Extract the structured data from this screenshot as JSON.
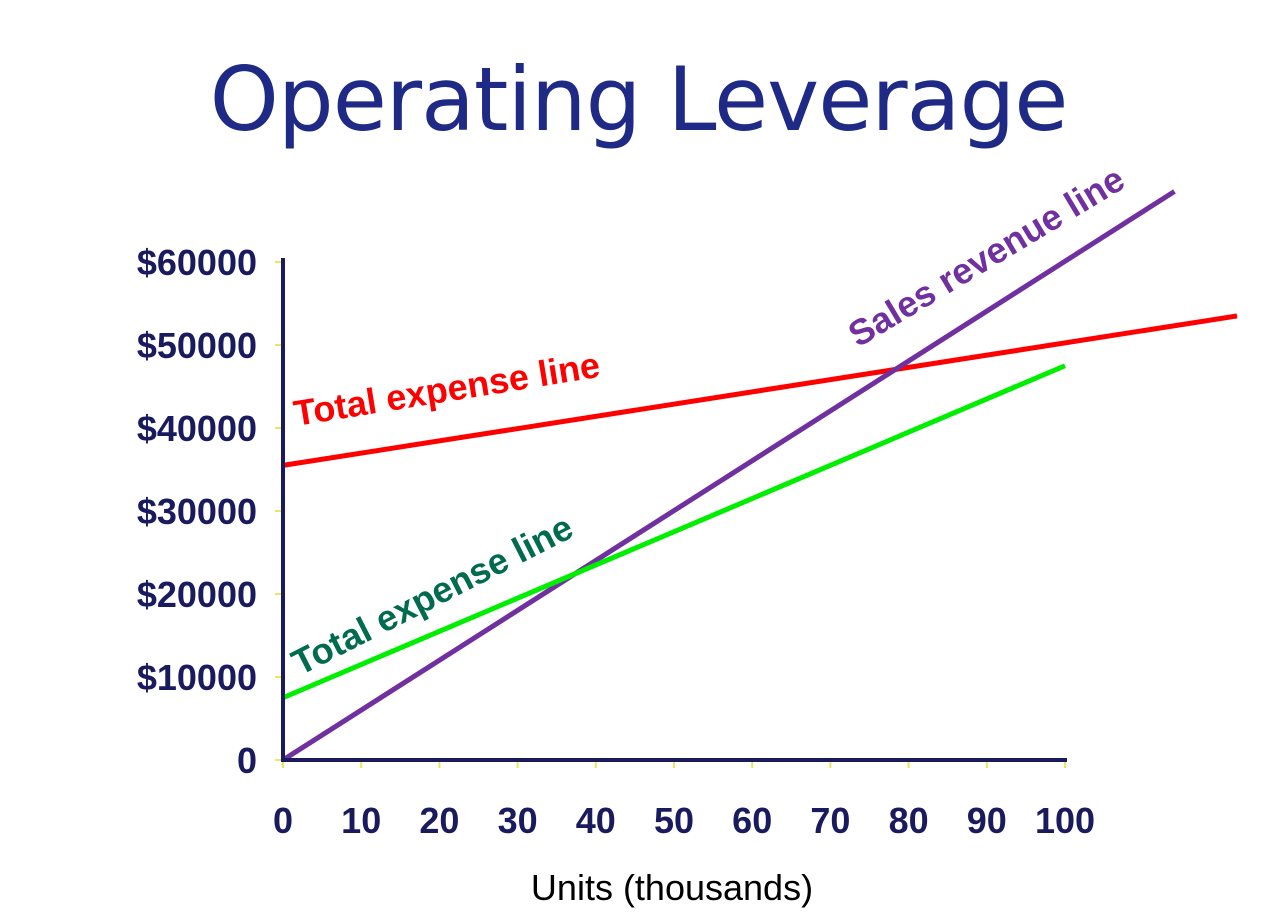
{
  "slide": {
    "title": "Operating Leverage"
  },
  "chart_data": {
    "type": "line",
    "title": "Operating Leverage",
    "xlabel": "Units (thousands)",
    "ylabel": "",
    "xlim": [
      0,
      100
    ],
    "ylim": [
      0,
      60000
    ],
    "x_ticks": [
      "0",
      "10",
      "20",
      "30",
      "40",
      "50",
      "60",
      "70",
      "80",
      "90",
      "100"
    ],
    "y_ticks": [
      "0",
      "$10000",
      "$20000",
      "$30000",
      "$40000",
      "$50000",
      "$60000"
    ],
    "grid": false,
    "colors": {
      "axis": "#1a1a5e",
      "tick_marks": "#e8e85a",
      "red_line": "#ff0000",
      "green_line": "#00ee00",
      "purple_line": "#7030a0",
      "red_label": "#ff0000",
      "green_label": "#006b4f",
      "purple_label": "#7030a0"
    },
    "series": [
      {
        "key": "red",
        "x": [
          0,
          122
        ],
        "y": [
          35500,
          53500
        ]
      },
      {
        "key": "purple",
        "x": [
          0,
          114
        ],
        "y": [
          0,
          68500
        ]
      },
      {
        "key": "green",
        "x": [
          0,
          60,
          100
        ],
        "y": [
          7500,
          31500,
          47500
        ]
      }
    ],
    "annotations": [
      {
        "key": "red",
        "text": "Total expense line"
      },
      {
        "key": "green",
        "text": "Total expense line"
      },
      {
        "key": "purple",
        "text": "Sales revenue line"
      }
    ]
  }
}
